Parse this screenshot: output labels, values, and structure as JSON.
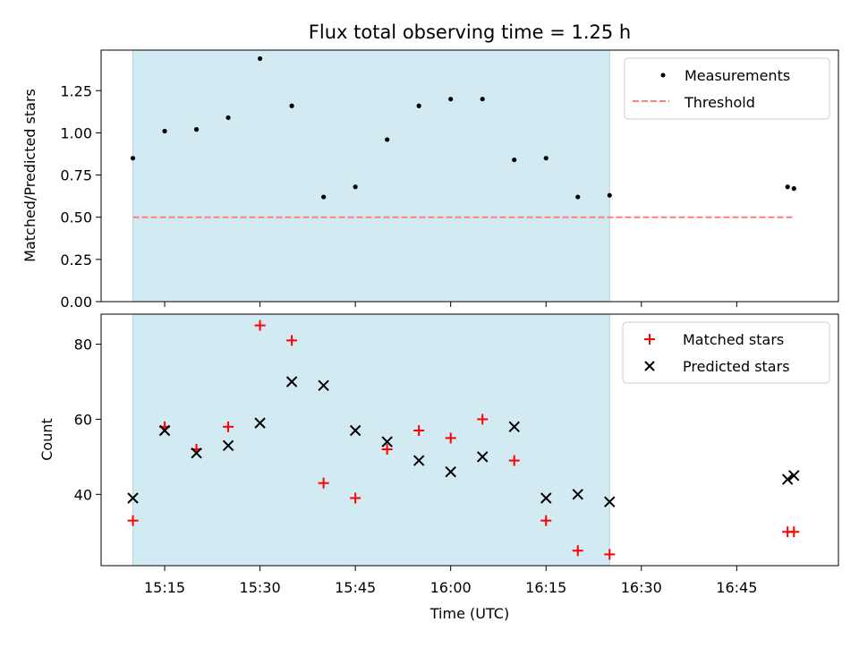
{
  "chart_data": {
    "title": "Flux total observing time = 1.25 h",
    "xlabel": "Time (UTC)",
    "x_ticks": [
      "15:15",
      "15:30",
      "15:45",
      "16:00",
      "16:15",
      "16:30",
      "16:45"
    ],
    "x_range": [
      "15:05",
      "17:01"
    ],
    "shaded_interval": [
      "15:10",
      "16:25"
    ],
    "shade_color": "#add8e6",
    "panels": [
      {
        "type": "scatter",
        "ylabel": "Matched/Predicted stars",
        "ylim": [
          0.0,
          1.49
        ],
        "y_ticks": [
          "0.00",
          "0.25",
          "0.50",
          "0.75",
          "1.00",
          "1.25"
        ],
        "legend_position": "upper right",
        "series": [
          {
            "name": "Measurements",
            "marker": "point",
            "color": "#000000",
            "x": [
              "15:10",
              "15:15",
              "15:20",
              "15:25",
              "15:30",
              "15:35",
              "15:40",
              "15:45",
              "15:50",
              "15:55",
              "16:00",
              "16:05",
              "16:10",
              "16:15",
              "16:20",
              "16:25",
              "16:53",
              "16:54"
            ],
            "y": [
              0.85,
              1.01,
              1.02,
              1.09,
              1.44,
              1.16,
              0.62,
              0.68,
              0.96,
              1.16,
              1.2,
              1.2,
              0.84,
              0.85,
              0.62,
              0.63,
              0.68,
              0.67
            ]
          },
          {
            "name": "Threshold",
            "type": "line",
            "style": "dashed",
            "color": "#ff7f7f",
            "x": [
              "15:10",
              "16:54"
            ],
            "y": [
              0.5,
              0.5
            ]
          }
        ]
      },
      {
        "type": "scatter",
        "ylabel": "Count",
        "ylim": [
          21,
          88
        ],
        "y_ticks": [
          "40",
          "60",
          "80"
        ],
        "legend_position": "upper right",
        "series": [
          {
            "name": "Matched stars",
            "marker": "+",
            "color": "#ff0000",
            "x": [
              "15:10",
              "15:15",
              "15:20",
              "15:25",
              "15:30",
              "15:35",
              "15:40",
              "15:45",
              "15:50",
              "15:55",
              "16:00",
              "16:05",
              "16:10",
              "16:15",
              "16:20",
              "16:25",
              "16:53",
              "16:54"
            ],
            "y": [
              33,
              58,
              52,
              58,
              85,
              81,
              43,
              39,
              52,
              57,
              55,
              60,
              49,
              33,
              25,
              24,
              30,
              30
            ]
          },
          {
            "name": "Predicted stars",
            "marker": "x",
            "color": "#000000",
            "x": [
              "15:10",
              "15:15",
              "15:20",
              "15:25",
              "15:30",
              "15:35",
              "15:40",
              "15:45",
              "15:50",
              "15:55",
              "16:00",
              "16:05",
              "16:10",
              "16:15",
              "16:20",
              "16:25",
              "16:53",
              "16:54"
            ],
            "y": [
              39,
              57,
              51,
              53,
              59,
              70,
              69,
              57,
              54,
              49,
              46,
              50,
              58,
              39,
              40,
              38,
              44,
              45
            ]
          }
        ]
      }
    ]
  }
}
